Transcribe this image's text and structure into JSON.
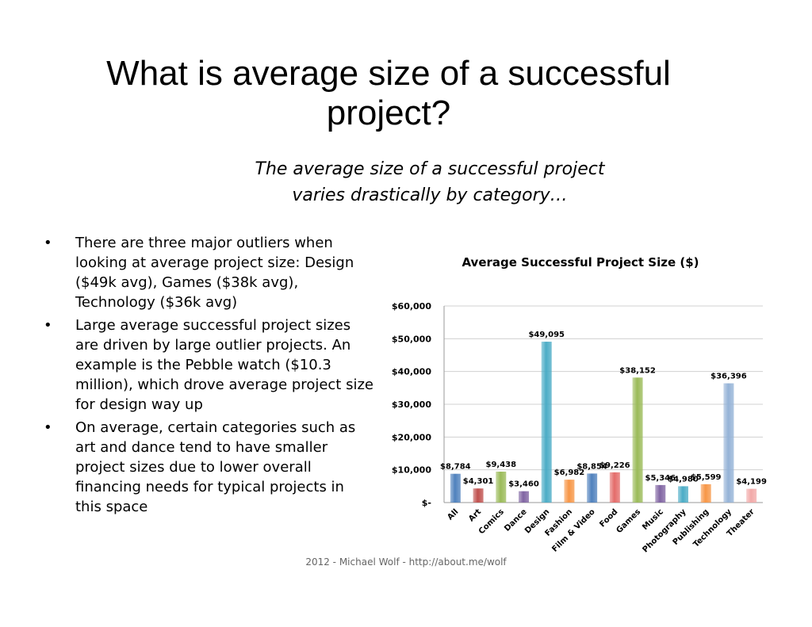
{
  "page": {
    "title_line1": "What is average size of a successful",
    "title_line2": "project?",
    "subtitle_line1": "The average size of a successful project",
    "subtitle_line2": "varies drastically by category…",
    "bullets": [
      "There are three major outliers when looking at average project size: Design ($49k avg), Games ($38k avg), Technology ($36k avg)",
      "Large average successful project sizes are driven by large outlier projects. An example is the Pebble watch ($10.3 million), which drove average project size for design way up",
      "On average, certain categories such as art and dance tend to have smaller project sizes due to lower overall financing needs for typical projects in this space"
    ],
    "bullet_symbol": "•",
    "footer": "2012 - Michael Wolf - http://about.me/wolf"
  },
  "chart_data": {
    "type": "bar",
    "title": "Average Successful Project Size ($)",
    "categories": [
      "All",
      "Art",
      "Comics",
      "Dance",
      "Design",
      "Fashion",
      "Film & Video",
      "Food",
      "Games",
      "Music",
      "Photography",
      "Publishing",
      "Technology",
      "Theater"
    ],
    "values": [
      8784,
      4301,
      9438,
      3460,
      49095,
      6982,
      8854,
      9226,
      38152,
      5346,
      4980,
      5599,
      36396,
      4199
    ],
    "value_labels": [
      "$8,784",
      "$4,301",
      "$9,438",
      "$3,460",
      "$49,095",
      "$6,982",
      "$8,854",
      "$9,226",
      "$38,152",
      "$5,346",
      "$4,980",
      "$5,599",
      "$36,396",
      "$4,199"
    ],
    "colors": [
      "#4f81bd",
      "#c0504d",
      "#9bbb59",
      "#8064a2",
      "#4bacc6",
      "#f79646",
      "#4f81bd",
      "#e46c6a",
      "#9bbb59",
      "#8064a2",
      "#4bacc6",
      "#f79646",
      "#95b3d7",
      "#f2a9a8"
    ],
    "ylim": [
      0,
      60000
    ],
    "yticks": [
      0,
      10000,
      20000,
      30000,
      40000,
      50000,
      60000
    ],
    "ytick_labels": [
      "$-",
      "$10,000",
      "$20,000",
      "$30,000",
      "$40,000",
      "$50,000",
      "$60,000"
    ],
    "grid": true,
    "legend": "none"
  }
}
